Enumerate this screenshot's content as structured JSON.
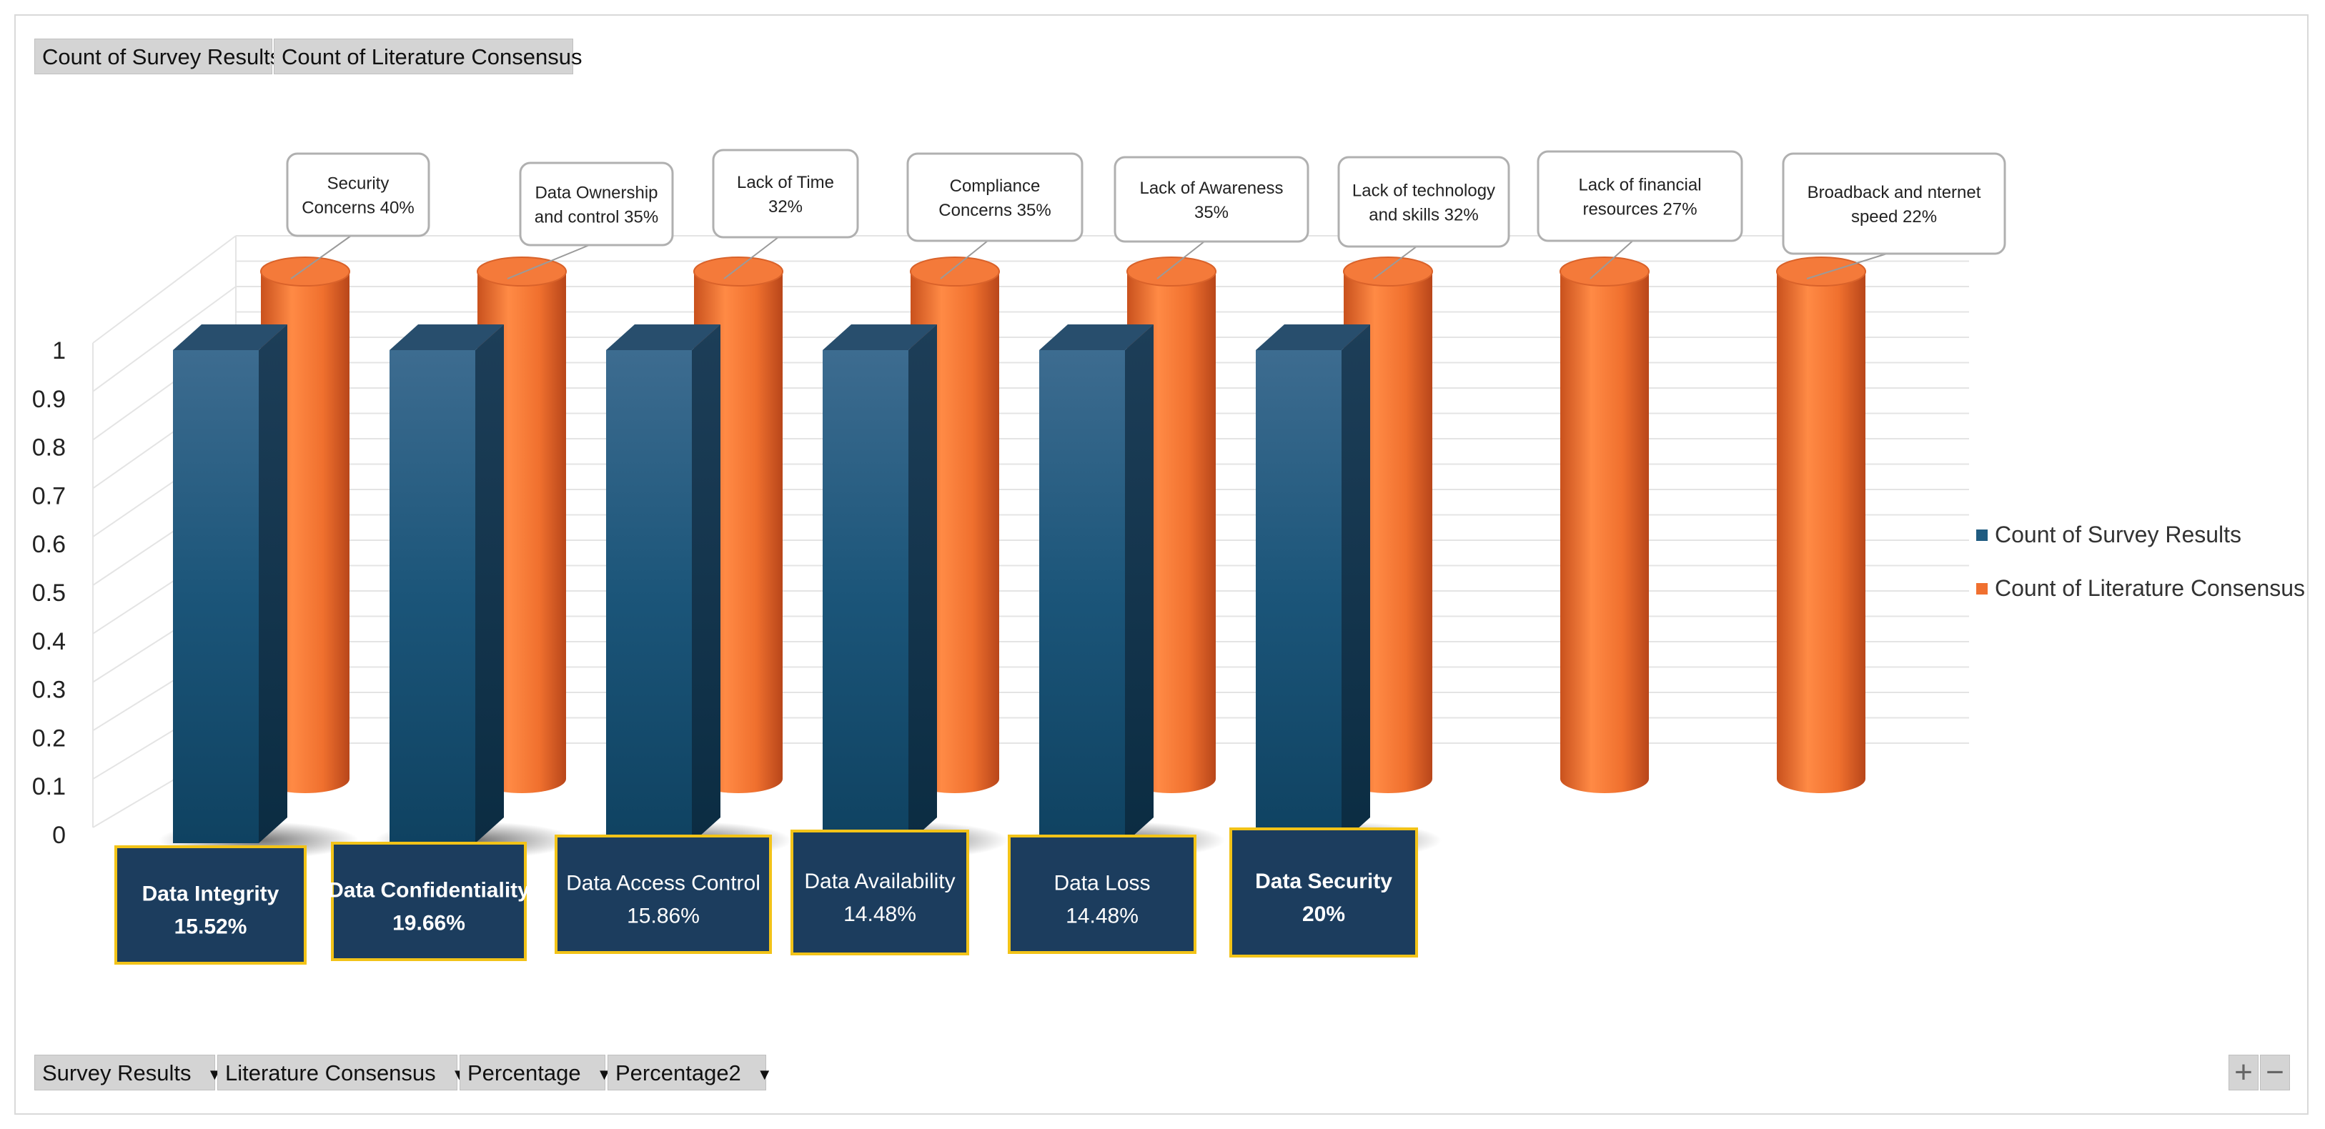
{
  "top_fields": [
    {
      "label": "Count of Survey Results"
    },
    {
      "label": "Count of Literature Consensus"
    }
  ],
  "bottom_fields": [
    {
      "label": "Survey Results"
    },
    {
      "label": "Literature Consensus"
    },
    {
      "label": "Percentage"
    },
    {
      "label": "Percentage2"
    }
  ],
  "zoom": {
    "plus": "+",
    "minus": "−"
  },
  "colors": {
    "survey": "#1f5b80",
    "literature": "#f07030",
    "label_box": "#1c3d5e",
    "label_border": "#f2c318"
  },
  "chart_data": {
    "type": "bar",
    "title": "",
    "ylim": [
      0,
      1
    ],
    "y_ticks": [
      "0",
      "0.1",
      "0.2",
      "0.3",
      "0.4",
      "0.5",
      "0.6",
      "0.7",
      "0.8",
      "0.9",
      "1"
    ],
    "legend": {
      "position": "right",
      "entries": [
        "Count of Survey Results",
        "Count of Literature Consensus"
      ]
    },
    "series": [
      {
        "name": "Count of Survey Results",
        "values": [
          1,
          1,
          1,
          1,
          1,
          1
        ],
        "labels": [
          {
            "line1": "Data Integrity",
            "line2": "15.52%",
            "bold": true
          },
          {
            "line1": "Data Confidentiality",
            "line2": "19.66%",
            "bold": true
          },
          {
            "line1": "Data Access Control",
            "line2": "15.86%",
            "bold": false
          },
          {
            "line1": "Data Availability",
            "line2": "14.48%",
            "bold": false
          },
          {
            "line1": "Data Loss",
            "line2": "14.48%",
            "bold": false
          },
          {
            "line1": "Data Security",
            "line2": "20%",
            "bold": true
          }
        ]
      },
      {
        "name": "Count of Literature Consensus",
        "values": [
          1,
          1,
          1,
          1,
          1,
          1,
          1,
          1
        ],
        "labels": [
          {
            "line1": "Security",
            "line2": "Concerns 40%"
          },
          {
            "line1": "Data Ownership",
            "line2": "and control 35%"
          },
          {
            "line1": "Lack of Time",
            "line2": "32%"
          },
          {
            "line1": "Compliance",
            "line2": "Concerns 35%"
          },
          {
            "line1": "Lack of Awareness",
            "line2": "35%"
          },
          {
            "line1": "Lack of technology",
            "line2": "and skills 32%"
          },
          {
            "line1": "Lack of financial",
            "line2": "resources 27%"
          },
          {
            "line1": "Broadback and nternet",
            "line2": "speed 22%"
          }
        ]
      }
    ]
  }
}
